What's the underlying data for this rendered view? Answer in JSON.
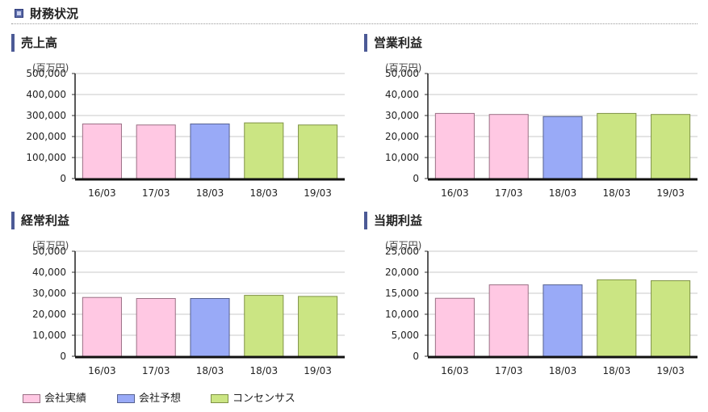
{
  "section": {
    "title": "財務状況",
    "icon": "square-bullet-icon"
  },
  "colors": {
    "actual": "#ffc8e3",
    "actual_stroke": "#9a6f84",
    "forecast": "#99aaf7",
    "forecast_stroke": "#56618f",
    "consensus": "#cbe583",
    "consensus_stroke": "#7f9246",
    "header_accent": "#4c5a96"
  },
  "legend": [
    {
      "key": "actual",
      "label": "会社実績"
    },
    {
      "key": "forecast",
      "label": "会社予想"
    },
    {
      "key": "consensus",
      "label": "コンセンサス"
    }
  ],
  "chart_data": [
    {
      "type": "bar",
      "title": "売上高",
      "unit": "(百万円)",
      "categories": [
        "16/03",
        "17/03",
        "18/03",
        "18/03",
        "19/03"
      ],
      "bar_types": [
        "actual",
        "actual",
        "forecast",
        "consensus",
        "consensus"
      ],
      "values": [
        260000,
        255000,
        260000,
        265000,
        255000
      ],
      "ylim": [
        0,
        500000
      ],
      "yticks": [
        0,
        100000,
        200000,
        300000,
        400000,
        500000
      ],
      "ytick_labels": [
        "0",
        "100,000",
        "200,000",
        "300,000",
        "400,000",
        "500,000"
      ],
      "grid": true
    },
    {
      "type": "bar",
      "title": "営業利益",
      "unit": "(百万円)",
      "categories": [
        "16/03",
        "17/03",
        "18/03",
        "18/03",
        "19/03"
      ],
      "bar_types": [
        "actual",
        "actual",
        "forecast",
        "consensus",
        "consensus"
      ],
      "values": [
        31000,
        30500,
        29500,
        31000,
        30500
      ],
      "ylim": [
        0,
        50000
      ],
      "yticks": [
        0,
        10000,
        20000,
        30000,
        40000,
        50000
      ],
      "ytick_labels": [
        "0",
        "10,000",
        "20,000",
        "30,000",
        "40,000",
        "50,000"
      ],
      "grid": true
    },
    {
      "type": "bar",
      "title": "経常利益",
      "unit": "(百万円)",
      "categories": [
        "16/03",
        "17/03",
        "18/03",
        "18/03",
        "19/03"
      ],
      "bar_types": [
        "actual",
        "actual",
        "forecast",
        "consensus",
        "consensus"
      ],
      "values": [
        28000,
        27500,
        27500,
        29000,
        28500
      ],
      "ylim": [
        0,
        50000
      ],
      "yticks": [
        0,
        10000,
        20000,
        30000,
        40000,
        50000
      ],
      "ytick_labels": [
        "0",
        "10,000",
        "20,000",
        "30,000",
        "40,000",
        "50,000"
      ],
      "grid": true
    },
    {
      "type": "bar",
      "title": "当期利益",
      "unit": "(百万円)",
      "categories": [
        "16/03",
        "17/03",
        "18/03",
        "18/03",
        "19/03"
      ],
      "bar_types": [
        "actual",
        "actual",
        "forecast",
        "consensus",
        "consensus"
      ],
      "values": [
        13800,
        17000,
        17000,
        18200,
        18000
      ],
      "ylim": [
        0,
        25000
      ],
      "yticks": [
        0,
        5000,
        10000,
        15000,
        20000,
        25000
      ],
      "ytick_labels": [
        "0",
        "5,000",
        "10,000",
        "15,000",
        "20,000",
        "25,000"
      ],
      "grid": true
    }
  ]
}
